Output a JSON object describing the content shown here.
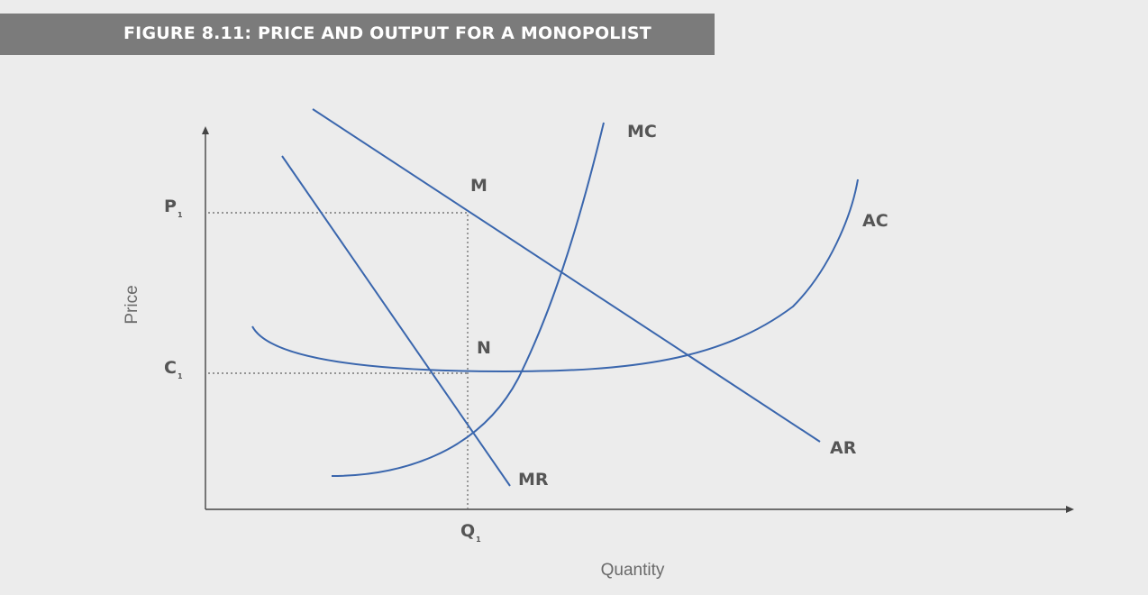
{
  "title": "FIGURE 8.11: PRICE AND OUTPUT FOR A MONOPOLIST",
  "axes": {
    "x_title": "Quantity",
    "y_title": "Price"
  },
  "curves": {
    "mc": "MC",
    "ac": "AC",
    "ar": "AR",
    "mr": "MR"
  },
  "points": {
    "m": "M",
    "n": "N"
  },
  "ticks": {
    "p1": {
      "letter": "P",
      "sub": "1"
    },
    "c1": {
      "letter": "C",
      "sub": "1"
    },
    "q1": {
      "letter": "Q",
      "sub": "1"
    }
  },
  "colors": {
    "curve": "#3a66ad",
    "title_bg": "#7b7b7b",
    "background": "#ececec"
  }
}
